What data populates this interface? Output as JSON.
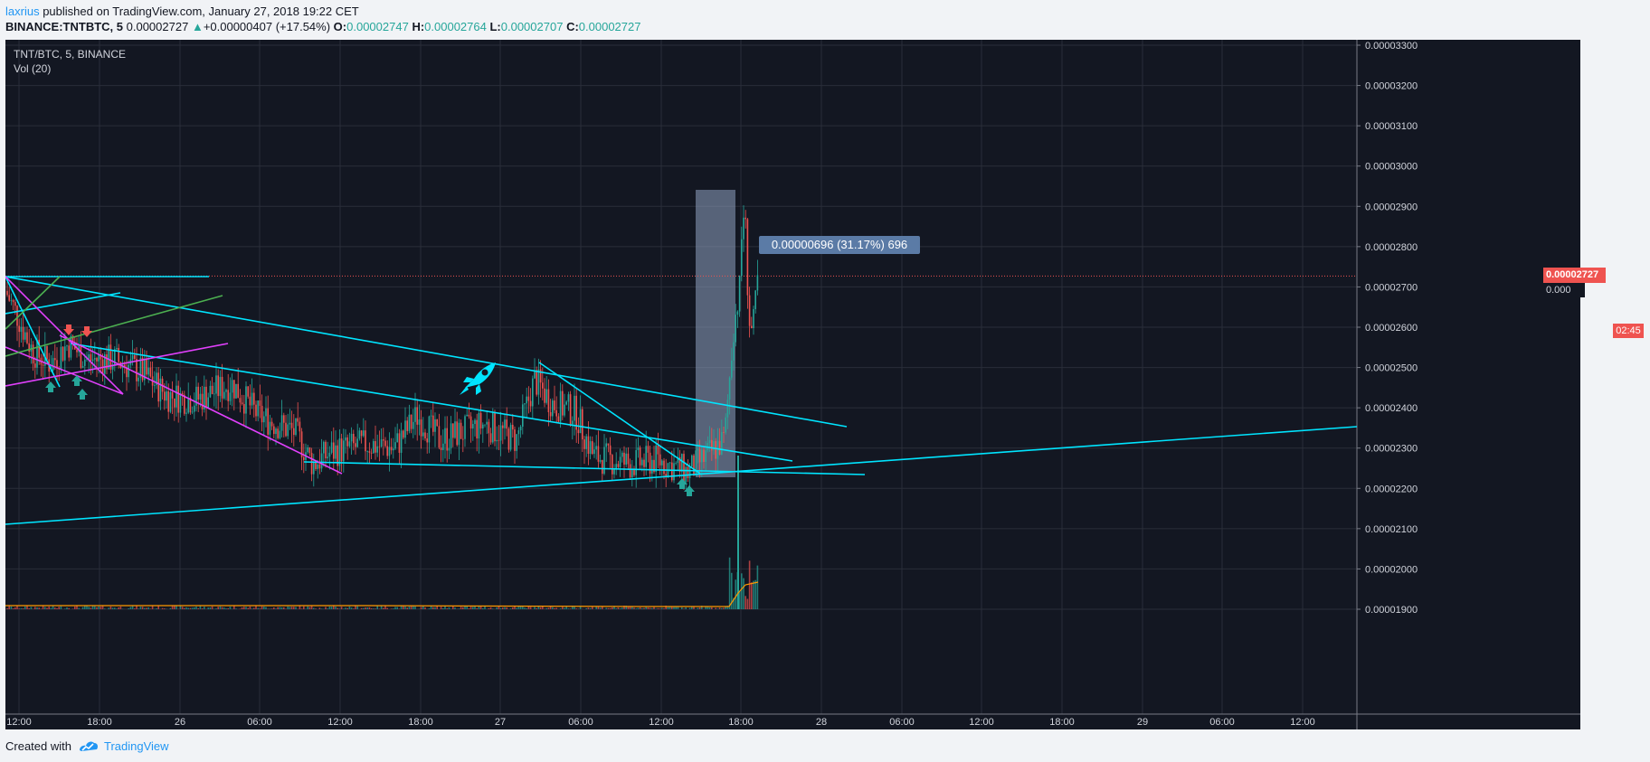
{
  "header": {
    "author": "laxrius",
    "published_text": " published on TradingView.com, January 27, 2018 19:22 CET",
    "symbol": "BINANCE:TNTBTC, 5",
    "last_price": "0.00002727",
    "change_arrow": "▲",
    "change": "+0.00000407 (+17.54%)",
    "open_label": "O:",
    "open": "0.00002747",
    "high_label": "H:",
    "high": "0.00002764",
    "low_label": "L:",
    "low": "0.00002707",
    "close_label": "C:",
    "close": "0.00002727"
  },
  "chart": {
    "legend_symbol": "TNT/BTC, 5, BINANCE",
    "legend_volume": "Vol (20)",
    "current_price_label": "0.00002727",
    "axis_overlap_label": "0.000",
    "countdown": "02:45",
    "measure_label": "0.00000696 (31.17%) 696"
  },
  "chart_data": {
    "type": "candlestick",
    "title": "TNT/BTC, 5, BINANCE",
    "y_ticks": [
      "0.00003300",
      "0.00003200",
      "0.00003100",
      "0.00003000",
      "0.00002900",
      "0.00002800",
      "0.00002700",
      "0.00002600",
      "0.00002500",
      "0.00002400",
      "0.00002300",
      "0.00002200",
      "0.00002100",
      "0.00002000",
      "0.00001900"
    ],
    "x_ticks": [
      "12:00",
      "18:00",
      "26",
      "06:00",
      "12:00",
      "18:00",
      "27",
      "06:00",
      "12:00",
      "18:00",
      "28",
      "06:00",
      "12:00",
      "18:00",
      "29",
      "06:00",
      "12:00"
    ],
    "ylim": [
      1.87e-05,
      3.32e-05
    ],
    "current_price": 2.727e-05,
    "measure": {
      "delta": 6.96e-06,
      "percent": 31.17,
      "bars": 696
    },
    "grid": true,
    "colors": {
      "up": "#26a69a",
      "down": "#ef5350",
      "trendline": "#00e5ff",
      "magenta": "#e040fb",
      "green": "#4caf50"
    }
  },
  "footer": {
    "created_with": "Created with",
    "brand": "TradingView"
  }
}
